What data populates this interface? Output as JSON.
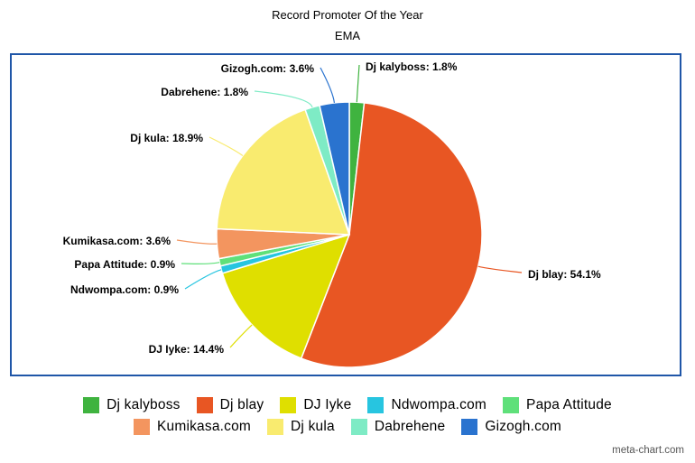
{
  "chart_data": {
    "type": "pie",
    "title": "Record Promoter Of the Year",
    "subtitle": "EMA",
    "slices": [
      {
        "label": "Dj kalyboss",
        "value": 1.8,
        "color": "#3fb33f"
      },
      {
        "label": "Dj blay",
        "value": 54.1,
        "color": "#e85623"
      },
      {
        "label": "DJ Iyke",
        "value": 14.4,
        "color": "#dfdf00"
      },
      {
        "label": "Ndwompa.com",
        "value": 0.9,
        "color": "#27c5e0"
      },
      {
        "label": "Papa Attitude",
        "value": 0.9,
        "color": "#5fe07a"
      },
      {
        "label": "Kumikasa.com",
        "value": 3.6,
        "color": "#f3955f"
      },
      {
        "label": "Dj kula",
        "value": 18.9,
        "color": "#f9eb6f"
      },
      {
        "label": "Dabrehene",
        "value": 1.8,
        "color": "#7eebc5"
      },
      {
        "label": "Gizogh.com",
        "value": 3.6,
        "color": "#2a73cf"
      }
    ],
    "data_labels": [
      "Dj kalyboss: 1.8%",
      "Dj blay: 54.1%",
      "DJ Iyke: 14.4%",
      "Ndwompa.com: 0.9%",
      "Papa Attitude: 0.9%",
      "Kumikasa.com: 3.6%",
      "Dj kula: 18.9%",
      "Dabrehene: 1.8%",
      "Gizogh.com: 3.6%"
    ],
    "legend_position": "bottom"
  },
  "credit": "meta-chart.com"
}
